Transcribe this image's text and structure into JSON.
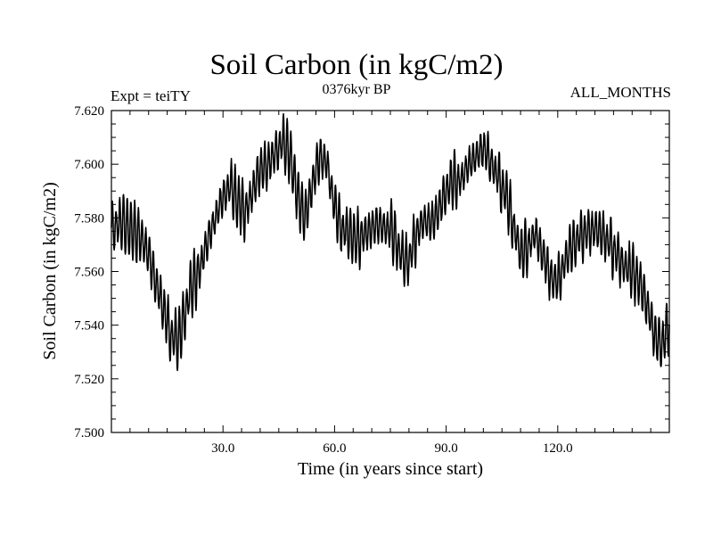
{
  "chart_data": {
    "type": "line",
    "title": "Soil Carbon (in kgC/m2)",
    "subtitle": "0376kyr BP",
    "left_label": "Expt = teiTY",
    "right_label": "ALL_MONTHS",
    "xlabel": "Time (in years since start)",
    "ylabel": "Soil Carbon (in kgC/m2)",
    "xlim": [
      0,
      150
    ],
    "ylim": [
      7.5,
      7.62
    ],
    "xticks": [
      30,
      60,
      90,
      120
    ],
    "xtick_labels": [
      "30.0",
      "60.0",
      "90.0",
      "120.0"
    ],
    "yticks": [
      7.5,
      7.52,
      7.54,
      7.56,
      7.58,
      7.6,
      7.62
    ],
    "ytick_labels": [
      "7.500",
      "7.520",
      "7.540",
      "7.560",
      "7.580",
      "7.600",
      "7.620"
    ],
    "series": [
      {
        "name": "Soil Carbon",
        "annual_cycle_amplitude": 0.007,
        "trend_x": [
          0,
          3,
          6,
          8,
          10,
          12,
          14,
          16,
          18,
          20,
          22,
          24,
          26,
          28,
          30,
          32,
          34,
          36,
          38,
          40,
          42,
          44,
          46,
          48,
          50,
          52,
          54,
          56,
          58,
          60,
          62,
          64,
          66,
          68,
          70,
          72,
          74,
          76,
          78,
          80,
          82,
          84,
          86,
          88,
          90,
          92,
          94,
          96,
          98,
          100,
          102,
          104,
          106,
          108,
          110,
          112,
          114,
          116,
          118,
          120,
          122,
          124,
          126,
          128,
          130,
          132,
          134,
          136,
          138,
          140,
          142,
          144,
          146,
          148,
          150
        ],
        "trend_y": [
          7.576,
          7.578,
          7.575,
          7.573,
          7.566,
          7.556,
          7.546,
          7.536,
          7.534,
          7.546,
          7.556,
          7.562,
          7.572,
          7.58,
          7.588,
          7.592,
          7.586,
          7.582,
          7.59,
          7.598,
          7.6,
          7.604,
          7.608,
          7.604,
          7.588,
          7.58,
          7.592,
          7.603,
          7.6,
          7.584,
          7.576,
          7.574,
          7.572,
          7.574,
          7.576,
          7.578,
          7.576,
          7.574,
          7.565,
          7.564,
          7.574,
          7.579,
          7.578,
          7.583,
          7.59,
          7.594,
          7.594,
          7.6,
          7.603,
          7.606,
          7.601,
          7.595,
          7.589,
          7.578,
          7.566,
          7.57,
          7.574,
          7.566,
          7.558,
          7.556,
          7.564,
          7.57,
          7.573,
          7.575,
          7.576,
          7.574,
          7.57,
          7.566,
          7.562,
          7.56,
          7.556,
          7.548,
          7.536,
          7.533,
          7.54
        ]
      }
    ]
  }
}
